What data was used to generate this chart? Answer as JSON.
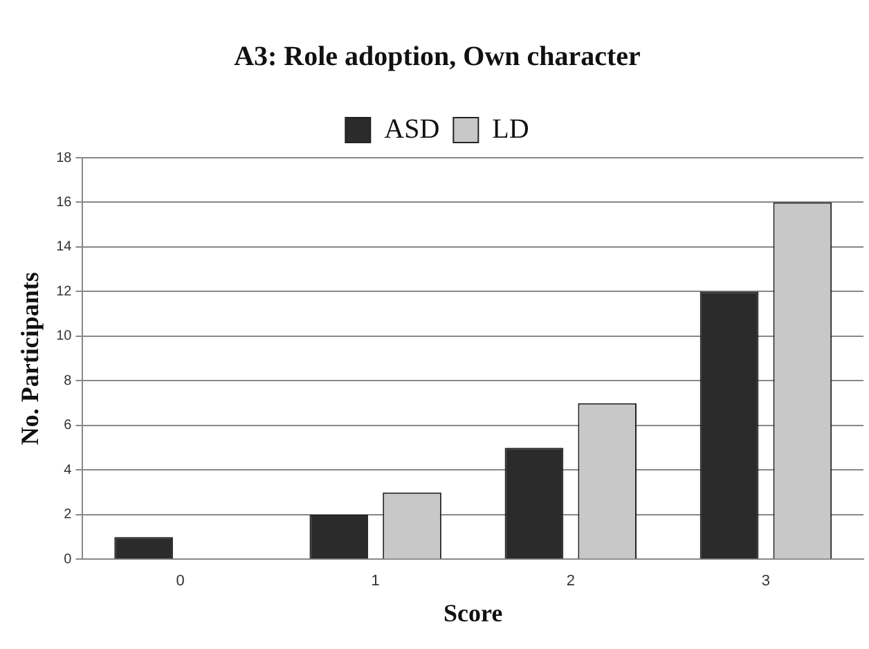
{
  "chart_data": {
    "type": "bar",
    "title": "A3: Role adoption, Own character",
    "xlabel": "Score",
    "ylabel": "No. Participants",
    "categories": [
      "0",
      "1",
      "2",
      "3"
    ],
    "series": [
      {
        "name": "ASD",
        "color": "#2b2b2b",
        "values": [
          1,
          2,
          5,
          12
        ]
      },
      {
        "name": "LD",
        "color": "#c8c8c8",
        "values": [
          0,
          3,
          7,
          16
        ]
      }
    ],
    "ylim": [
      0,
      18
    ],
    "yticks": [
      0,
      2,
      4,
      6,
      8,
      10,
      12,
      14,
      16,
      18
    ],
    "grid": "y",
    "legend": "top"
  }
}
